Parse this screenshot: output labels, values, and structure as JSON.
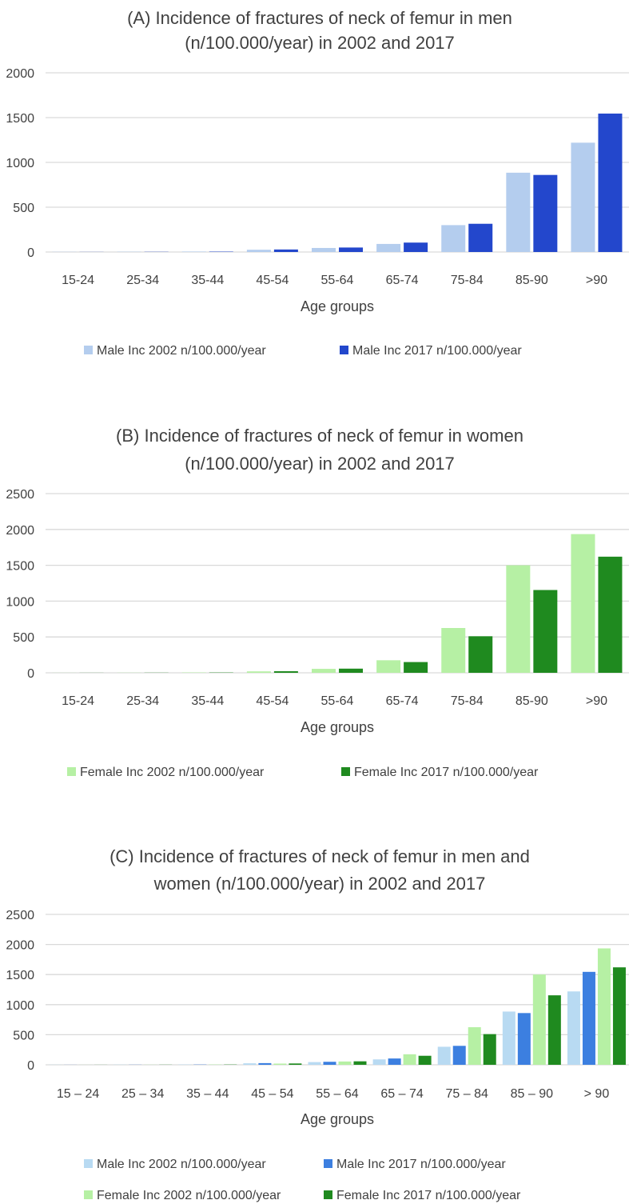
{
  "chart_data": [
    {
      "type": "bar",
      "title": [
        "(A) Incidence of fractures of neck of femur in men",
        "(n/100.000/year) in 2002 and 2017"
      ],
      "xlabel": "Age groups",
      "ylabel": "",
      "categories": [
        "15-24",
        "25-34",
        "35-44",
        "45-54",
        "55-64",
        "65-74",
        "75-84",
        "85-90",
        ">90"
      ],
      "yticks": [
        "0",
        "500",
        "1000",
        "1500",
        "2000"
      ],
      "ylim": [
        0,
        2000
      ],
      "grid": true,
      "legend_position": "bottom",
      "series": [
        {
          "name": "Male Inc 2002 n/100.000/year",
          "color": "#b4cdee",
          "values": [
            2,
            3,
            5,
            25,
            45,
            90,
            300,
            885,
            1220
          ]
        },
        {
          "name": "Male Inc 2017 n/100.000/year",
          "color": "#2347cc",
          "values": [
            1,
            2,
            4,
            28,
            50,
            105,
            315,
            860,
            1545
          ]
        }
      ]
    },
    {
      "type": "bar",
      "title": [
        "(B) Incidence of fractures of neck of femur in women",
        "(n/100.000/year) in 2002 and 2017"
      ],
      "xlabel": "Age groups",
      "ylabel": "",
      "categories": [
        "15-24",
        "25-34",
        "35-44",
        "45-54",
        "55-64",
        "65-74",
        "75-84",
        "85-90",
        ">90"
      ],
      "yticks": [
        "0",
        "500",
        "1000",
        "1500",
        "2000",
        "2500"
      ],
      "ylim": [
        0,
        2500
      ],
      "grid": true,
      "legend_position": "bottom",
      "series": [
        {
          "name": "Female Inc 2002 n/100.000/year",
          "color": "#b6f0a4",
          "values": [
            1,
            2,
            5,
            20,
            55,
            175,
            625,
            1500,
            1935
          ]
        },
        {
          "name": "Female Inc 2017 n/100.000/year",
          "color": "#1f8a1f",
          "values": [
            1,
            2,
            4,
            22,
            58,
            150,
            510,
            1155,
            1620
          ]
        }
      ]
    },
    {
      "type": "bar",
      "title": [
        "(C) Incidence of fractures of neck of femur in men and",
        "women (n/100.000/year) in 2002 and 2017"
      ],
      "xlabel": "Age groups",
      "ylabel": "",
      "categories": [
        "15 – 24",
        "25 – 34",
        "35 – 44",
        "45 – 54",
        "55 – 64",
        "65 – 74",
        "75 – 84",
        "85 – 90",
        "> 90"
      ],
      "yticks": [
        "0",
        "500",
        "1000",
        "1500",
        "2000",
        "2500"
      ],
      "ylim": [
        0,
        2500
      ],
      "grid": true,
      "legend_position": "bottom",
      "series": [
        {
          "name": "Male Inc 2002 n/100.000/year",
          "color": "#b8daf2",
          "values": [
            2,
            3,
            5,
            25,
            45,
            90,
            300,
            885,
            1220
          ]
        },
        {
          "name": "Male Inc 2017 n/100.000/year",
          "color": "#3c7fe0",
          "values": [
            1,
            2,
            4,
            28,
            50,
            105,
            315,
            860,
            1545
          ]
        },
        {
          "name": "Female Inc 2002 n/100.000/year",
          "color": "#b6f0a4",
          "values": [
            1,
            2,
            5,
            20,
            55,
            175,
            625,
            1500,
            1935
          ]
        },
        {
          "name": "Female Inc 2017 n/100.000/year",
          "color": "#1f8a1f",
          "values": [
            1,
            2,
            4,
            22,
            58,
            150,
            510,
            1155,
            1620
          ]
        }
      ]
    }
  ]
}
